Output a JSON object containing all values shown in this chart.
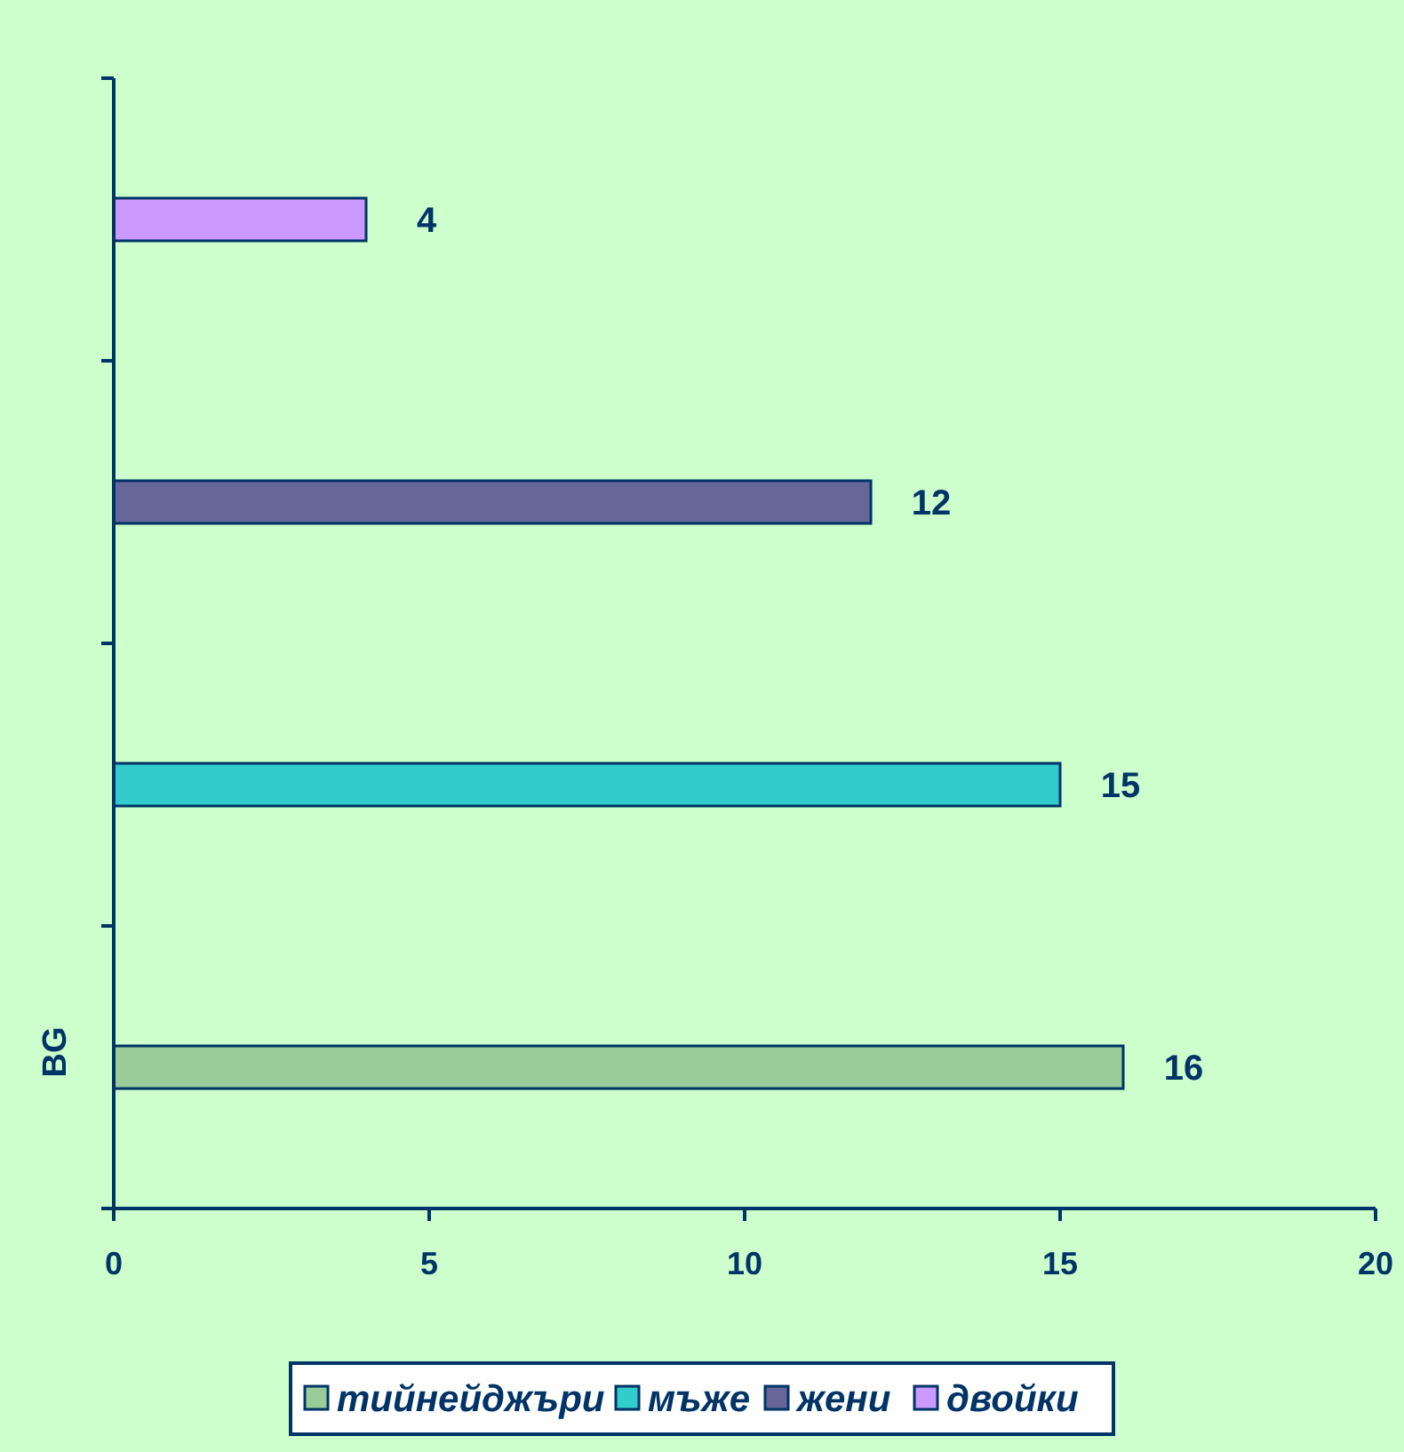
{
  "chart_data": {
    "type": "bar",
    "orientation": "horizontal",
    "ylabel": "BG",
    "categories": [
      null
    ],
    "series": [
      {
        "name": "тийнейджъри",
        "color": "#99cc99",
        "values": [
          16
        ]
      },
      {
        "name": "мъже",
        "color": "#33cccc",
        "values": [
          15
        ]
      },
      {
        "name": "жени",
        "color": "#666699",
        "values": [
          12
        ]
      },
      {
        "name": "двойки",
        "color": "#cc99ff",
        "values": [
          4
        ]
      }
    ],
    "xlim": [
      0,
      20
    ],
    "xticks": [
      0,
      5,
      10,
      15,
      20
    ],
    "data_labels": true,
    "legend": "bottom"
  }
}
